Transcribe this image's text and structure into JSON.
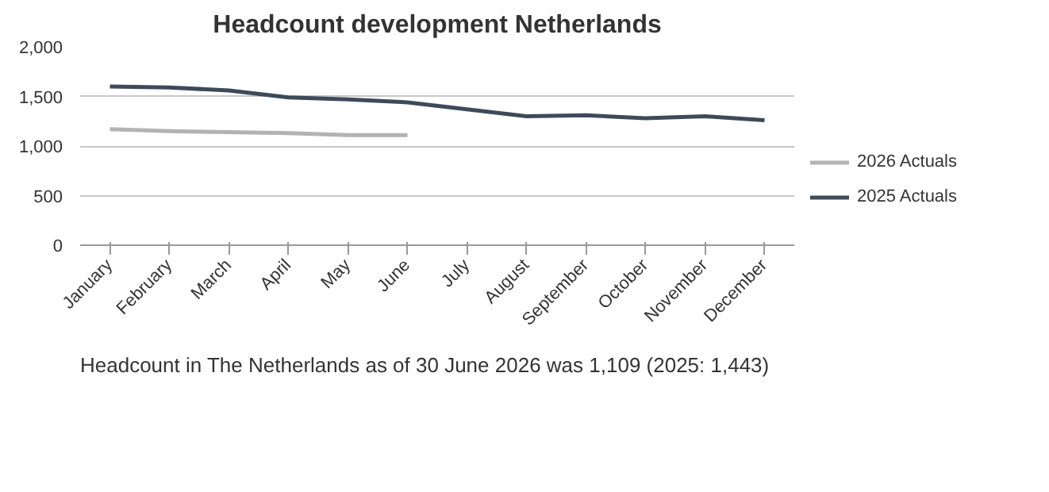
{
  "chart_data": {
    "type": "line",
    "title": "Headcount development Netherlands",
    "categories": [
      "January",
      "February",
      "March",
      "April",
      "May",
      "June",
      "July",
      "August",
      "September",
      "October",
      "November",
      "December"
    ],
    "series": [
      {
        "name": "2026 Actuals",
        "color": "#b3b3b3",
        "values": [
          1170,
          1150,
          1140,
          1130,
          1110,
          1110,
          null,
          null,
          null,
          null,
          null,
          null
        ]
      },
      {
        "name": "2025 Actuals",
        "color": "#3d4a5a",
        "values": [
          1600,
          1590,
          1560,
          1490,
          1470,
          1440,
          1370,
          1300,
          1310,
          1280,
          1300,
          1260
        ]
      }
    ],
    "ylim": [
      0,
      2000
    ],
    "yticks": [
      {
        "value": 0,
        "label": "0"
      },
      {
        "value": 500,
        "label": "500"
      },
      {
        "value": 1000,
        "label": "1,000"
      },
      {
        "value": 1500,
        "label": "1,500"
      },
      {
        "value": 2000,
        "label": "2,000"
      }
    ],
    "grid": "y",
    "legend": "right",
    "marker": "none",
    "line_style": "solid",
    "annotations": [
      "Headcount in The Netherlands as of 30 June 2026 was 1,109 (2025: 1,443)"
    ]
  }
}
